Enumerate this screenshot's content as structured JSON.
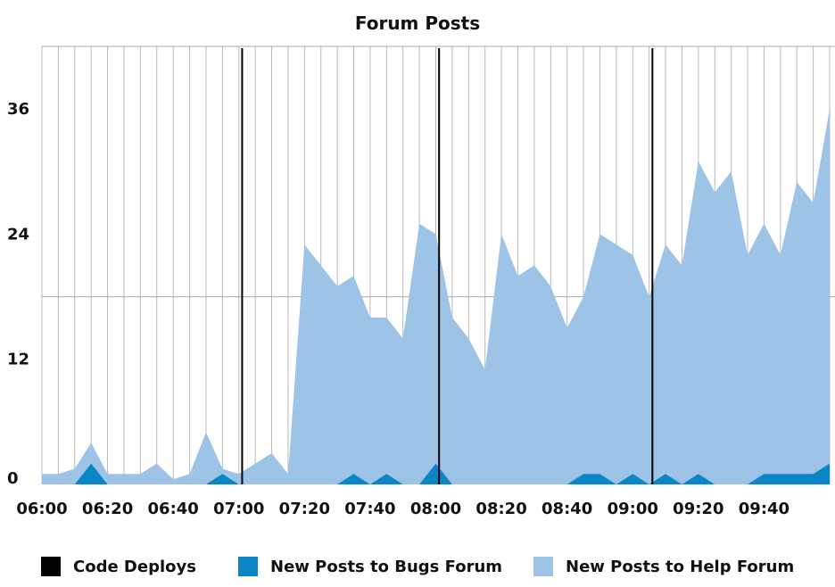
{
  "chart_data": {
    "type": "area",
    "title": "Forum Posts",
    "xlabel": "",
    "ylabel": "",
    "x_ticks": [
      "06:00",
      "06:20",
      "06:40",
      "07:00",
      "07:20",
      "07:40",
      "08:00",
      "08:20",
      "08:40",
      "09:00",
      "09:20",
      "09:40"
    ],
    "y_ticks": [
      0,
      12,
      24,
      36
    ],
    "ylim": [
      0,
      42
    ],
    "xlim_minutes_from_0600": [
      0,
      240
    ],
    "grid": true,
    "legend_placement": "bottom",
    "x": [
      "06:00",
      "06:05",
      "06:10",
      "06:15",
      "06:20",
      "06:25",
      "06:30",
      "06:35",
      "06:40",
      "06:45",
      "06:50",
      "06:55",
      "07:00",
      "07:05",
      "07:10",
      "07:15",
      "07:20",
      "07:25",
      "07:30",
      "07:35",
      "07:40",
      "07:45",
      "07:50",
      "07:55",
      "08:00",
      "08:05",
      "08:10",
      "08:15",
      "08:20",
      "08:25",
      "08:30",
      "08:35",
      "08:40",
      "08:45",
      "08:50",
      "08:55",
      "09:00",
      "09:05",
      "09:10",
      "09:15",
      "09:20",
      "09:25",
      "09:30",
      "09:35",
      "09:40",
      "09:45",
      "09:50",
      "09:55",
      "10:00"
    ],
    "series": [
      {
        "name": "New Posts to Help Forum",
        "color": "#9dc3e6",
        "values": [
          1,
          1,
          1.5,
          4,
          1,
          1,
          1,
          2,
          0.5,
          1,
          5,
          1.5,
          1,
          2,
          3,
          1,
          23,
          21,
          19,
          20,
          16,
          16,
          14,
          25,
          24,
          16,
          14,
          11,
          24,
          20,
          21,
          19,
          15,
          18,
          24,
          23,
          22,
          18,
          23,
          21,
          31,
          28,
          30,
          22,
          25,
          22,
          29,
          27,
          36
        ]
      },
      {
        "name": "New Posts to Bugs Forum",
        "color": "#0a86c7",
        "values": [
          0,
          0,
          0,
          2,
          0,
          0,
          0,
          0,
          0,
          0,
          0,
          1,
          0,
          0,
          0,
          0,
          0,
          0,
          0,
          1,
          0,
          1,
          0,
          0,
          2,
          0,
          0,
          0,
          0,
          0,
          0,
          0,
          0,
          1,
          1,
          0,
          1,
          0,
          1,
          0,
          1,
          0,
          0,
          0,
          1,
          1,
          1,
          1,
          2
        ]
      }
    ],
    "code_deploys": [
      "07:01",
      "08:01",
      "09:06"
    ],
    "legend": [
      {
        "label": "Code Deploys",
        "color": "#000000"
      },
      {
        "label": "New Posts to Bugs Forum",
        "color": "#0a86c7"
      },
      {
        "label": "New Posts to Help Forum",
        "color": "#9dc3e6"
      }
    ]
  }
}
